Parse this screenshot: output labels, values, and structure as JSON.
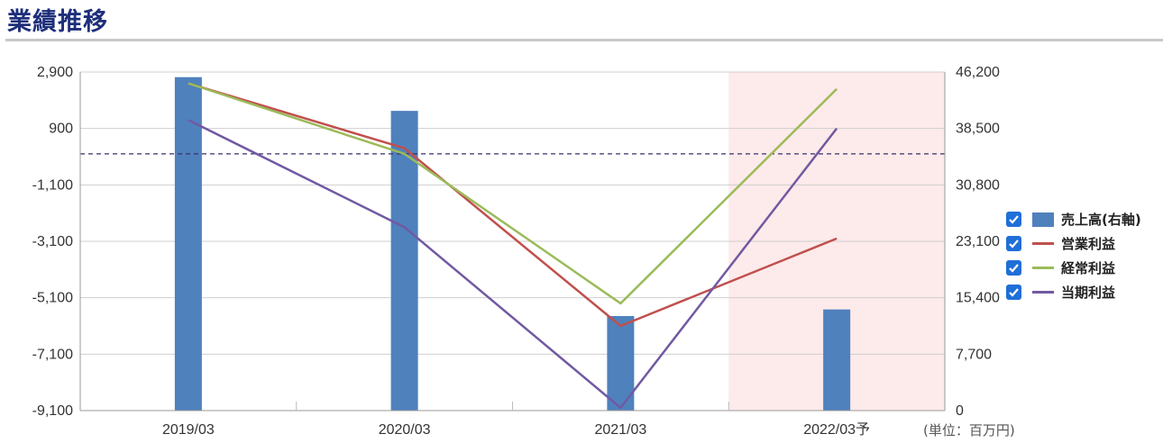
{
  "header": {
    "title": "業績推移"
  },
  "unit_label": "(単位：百万円)",
  "colors": {
    "sales": "#4f81bd",
    "operating": "#c0504d",
    "ordinary": "#9bbb59",
    "net": "#7159a2",
    "forecast_bg": "#fdeaea",
    "zero_line": "#3a2f6b"
  },
  "chart_data": {
    "type": "bar+line",
    "categories": [
      "2019/03",
      "2020/03",
      "2021/03",
      "2022/03予"
    ],
    "forecast_index": 3,
    "left_axis": {
      "ticks": [
        "2,900",
        "900",
        "-1,100",
        "-3,100",
        "-5,100",
        "-7,100",
        "-9,100"
      ],
      "min": -9100,
      "max": 2900
    },
    "right_axis": {
      "ticks": [
        "46,200",
        "38,500",
        "30,800",
        "23,100",
        "15,400",
        "7,700",
        "0"
      ],
      "min": 0,
      "max": 46200
    },
    "grid": true,
    "legend_position": "right",
    "series": [
      {
        "name": "売上高(右軸)",
        "type": "bar",
        "axis": "right",
        "values": [
          45500,
          40900,
          12900,
          13800
        ]
      },
      {
        "name": "営業利益",
        "type": "line",
        "axis": "left",
        "values": [
          2500,
          200,
          -6100,
          -3000
        ]
      },
      {
        "name": "経常利益",
        "type": "line",
        "axis": "left",
        "values": [
          2500,
          0,
          -5300,
          2300
        ]
      },
      {
        "name": "当期利益",
        "type": "line",
        "axis": "left",
        "values": [
          1200,
          -2600,
          -9000,
          900
        ]
      }
    ]
  }
}
